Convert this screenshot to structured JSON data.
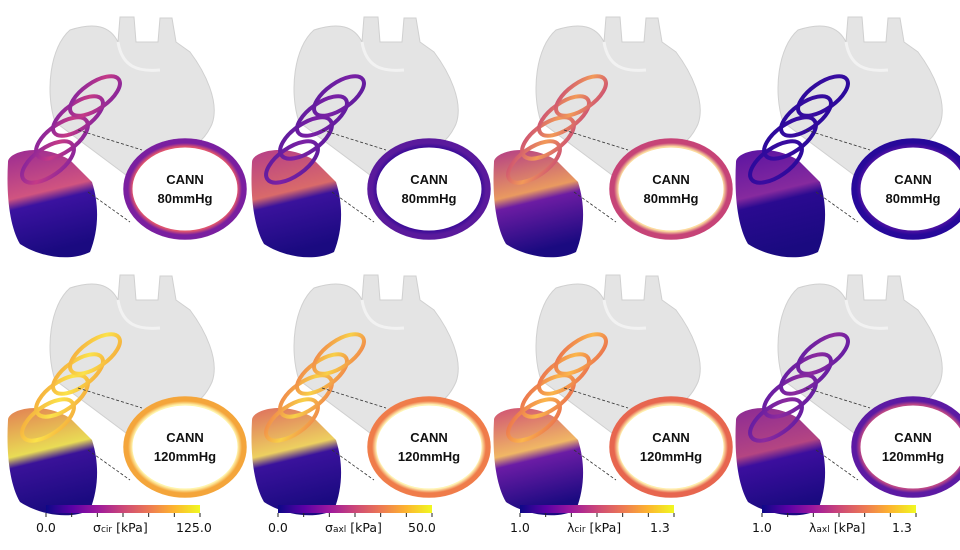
{
  "model_label": "CANN",
  "rows": [
    {
      "pressure": "80mmHg"
    },
    {
      "pressure": "120mmHg"
    }
  ],
  "columns": [
    {
      "symbol": "σ",
      "subscript": "cir",
      "unit": "[kPa]",
      "min": "0.0",
      "max": "125.0",
      "ring_colors": {
        "80mmHg": [
          "#7a1fa0",
          "#c53a86",
          "#e2566c"
        ],
        "120mmHg": [
          "#f4a53b",
          "#fbe24a",
          "#fff6b0"
        ]
      },
      "wall_colors": {
        "80mmHg": [
          "#9a2a93",
          "#d05480",
          "#3b12a0"
        ],
        "120mmHg": [
          "#e27f53",
          "#e9dc55",
          "#3a1299"
        ]
      }
    },
    {
      "symbol": "σ",
      "subscript": "axl",
      "unit": "[kPa]",
      "min": "0.0",
      "max": "50.0",
      "ring_colors": {
        "80mmHg": [
          "#5a1a9c",
          "#7b21a5",
          "#3d0d98"
        ],
        "120mmHg": [
          "#ef7c4a",
          "#f8d048",
          "#fff7b8"
        ]
      },
      "wall_colors": {
        "80mmHg": [
          "#b53d88",
          "#d96a6a",
          "#3a129c"
        ],
        "120mmHg": [
          "#de6e5e",
          "#edd060",
          "#3a129c"
        ]
      }
    },
    {
      "symbol": "λ",
      "subscript": "cir",
      "unit": "[kPa]",
      "min": "1.0",
      "max": "1.3",
      "ring_colors": {
        "80mmHg": [
          "#c64477",
          "#f29a58",
          "#fde0a0"
        ],
        "120mmHg": [
          "#e7664f",
          "#fbb64b",
          "#fff2b0"
        ]
      },
      "wall_colors": {
        "80mmHg": [
          "#b33d86",
          "#e99a60",
          "#6c1ca3"
        ],
        "120mmHg": [
          "#cf5174",
          "#f0b765",
          "#6b1ca5"
        ]
      }
    },
    {
      "symbol": "λ",
      "subscript": "axl",
      "unit": "[kPa]",
      "min": "1.0",
      "max": "1.3",
      "ring_colors": {
        "80mmHg": [
          "#27099a",
          "#3a0ca0",
          "#4a10a0"
        ],
        "120mmHg": [
          "#5c1aa3",
          "#8c2a9e",
          "#c04984"
        ]
      },
      "wall_colors": {
        "80mmHg": [
          "#5a13a2",
          "#862a9e",
          "#2a0a90"
        ],
        "120mmHg": [
          "#8c2a95",
          "#b44582",
          "#3c0e9e"
        ]
      }
    }
  ],
  "colormap": [
    "#0d0887",
    "#5c01a6",
    "#9c179e",
    "#cc4778",
    "#ed7953",
    "#fdb42f",
    "#f0f921"
  ]
}
